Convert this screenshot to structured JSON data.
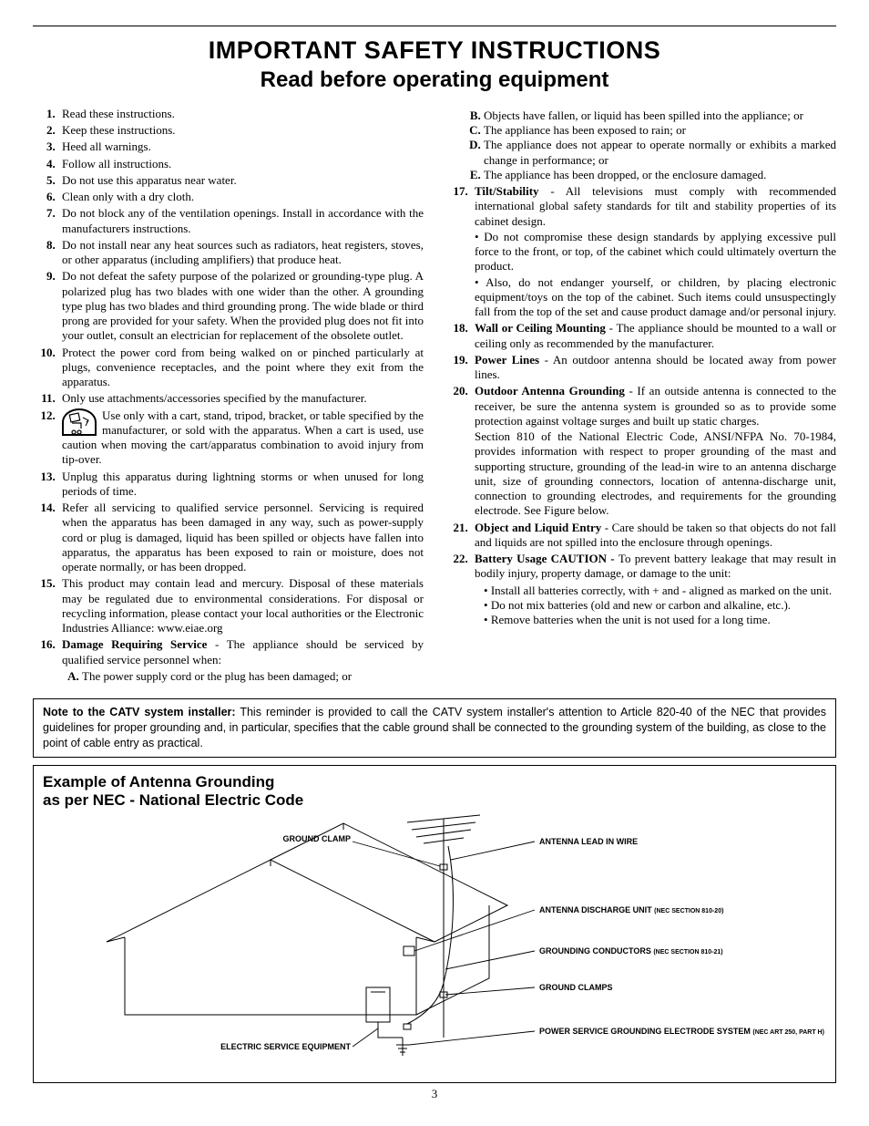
{
  "title": {
    "line1": "IMPORTANT SAFETY INSTRUCTIONS",
    "line2": "Read before operating equipment"
  },
  "left_items": [
    {
      "n": "1",
      "text": "Read these instructions."
    },
    {
      "n": "2",
      "text": "Keep these instructions."
    },
    {
      "n": "3",
      "text": "Heed all warnings."
    },
    {
      "n": "4",
      "text": "Follow all instructions."
    },
    {
      "n": "5",
      "text": "Do not use this apparatus near water."
    },
    {
      "n": "6",
      "text": "Clean only with a dry cloth."
    },
    {
      "n": "7",
      "text": "Do not block any of the ventilation openings. Install in accordance with the manufacturers instructions."
    },
    {
      "n": "8",
      "text": "Do not install near any heat sources such as radiators, heat registers, stoves, or other apparatus (including amplifiers) that produce heat."
    },
    {
      "n": "9",
      "text": "Do not defeat the safety purpose of the polarized or grounding-type plug. A polarized plug has two blades with one wider than the other. A grounding type plug has two blades and third grounding prong. The wide blade or third prong are provided for your safety. When the provided plug does not fit into your outlet, consult an electrician for replacement of the obsolete outlet."
    },
    {
      "n": "10",
      "text": "Protect the power cord from being walked on or pinched particularly at plugs, convenience receptacles, and the point where they exit from the apparatus."
    },
    {
      "n": "11",
      "text": "Only use attachments/accessories specified by the manufacturer."
    },
    {
      "n": "12",
      "text": "Use only with a cart, stand, tripod, bracket, or table specified by the manufacturer, or sold with the apparatus. When a cart is used, use caution when moving the cart/apparatus combination to avoid injury from tip-over.",
      "icon": true
    },
    {
      "n": "13",
      "text": "Unplug this apparatus during lightning storms or when unused for long periods of time."
    },
    {
      "n": "14",
      "text": "Refer all servicing to qualified service personnel. Servicing is required when the apparatus has been damaged in any way, such as power-supply cord or plug is damaged, liquid has been spilled or objects have fallen into apparatus, the apparatus has been exposed to rain or moisture, does not operate normally, or has been dropped."
    },
    {
      "n": "15",
      "text": "This product may contain lead and mercury. Disposal of these materials may be regulated due to environmental considerations. For disposal or recycling information, please contact your local authorities or the Electronic Industries Alliance: www.eiae.org"
    },
    {
      "n": "16",
      "bold": "Damage Requiring Service",
      "text": " - The appliance should be serviced by qualified service personnel when:",
      "sub": [
        {
          "l": "A",
          "text": "The power supply cord or the plug has been damaged; or"
        }
      ]
    }
  ],
  "right_pre_items": [
    {
      "l": "B",
      "text": "Objects have fallen, or liquid has been spilled into the appliance; or"
    },
    {
      "l": "C",
      "text": "The appliance has been exposed to rain; or"
    },
    {
      "l": "D",
      "text": "The appliance does not appear to operate normally or exhibits a marked change in performance; or"
    },
    {
      "l": "E",
      "text": "The appliance has been dropped, or the enclosure damaged."
    }
  ],
  "right_items": [
    {
      "n": "17",
      "bold": "Tilt/Stability",
      "text": " - All televisions must comply with recommended international global safety standards for tilt and stability properties of its cabinet design.",
      "paras": [
        "• Do not compromise these design standards by applying excessive pull force to the front, or top, of the cabinet which could ultimately overturn the product.",
        "• Also, do not endanger yourself, or children, by placing electronic equipment/toys on the top of the cabinet. Such items could unsuspectingly fall from the top of the set and cause product damage and/or personal injury."
      ]
    },
    {
      "n": "18",
      "bold": "Wall or Ceiling Mounting",
      "text": " - The appliance should be mounted to a wall or ceiling only as recommended by the manufacturer."
    },
    {
      "n": "19",
      "bold": "Power Lines",
      "text": " - An outdoor antenna should be located away from power lines."
    },
    {
      "n": "20",
      "bold": "Outdoor Antenna Grounding",
      "text": " - If an outside antenna is connected to the receiver, be sure the antenna system is grounded so as to provide some protection against voltage surges and built up static charges.",
      "paras": [
        "Section 810 of the National Electric Code, ANSI/NFPA No. 70-1984, provides information with respect to proper grounding of the mast and supporting structure, grounding of the lead-in wire to an antenna discharge unit, size of grounding connectors, location of antenna-discharge unit, connection to grounding electrodes, and requirements for the grounding electrode. See Figure below."
      ]
    },
    {
      "n": "21",
      "bold": "Object and Liquid Entry",
      "text": " - Care should be taken so that objects do not fall and liquids are not spilled into the enclosure through openings."
    },
    {
      "n": "22",
      "bold": "Battery Usage CAUTION - ",
      "text": "To prevent battery leakage that may result in bodily injury, property damage, or damage to the unit:",
      "bullets": [
        "Install all batteries correctly, with + and - aligned as marked on the unit.",
        "Do not mix batteries (old and new or carbon and alkaline, etc.).",
        "Remove batteries when the unit is not used for a long time."
      ]
    }
  ],
  "note_box": {
    "bold": "Note to the CATV system installer:",
    "text": " This reminder is provided to call the CATV system installer's attention to Article 820-40 of the NEC that provides guidelines for proper grounding and, in particular, specifies that the cable ground shall be connected to the grounding system of the building, as close to the point of cable entry as practical."
  },
  "diagram": {
    "title_l1": "Example of Antenna Grounding",
    "title_l2": "as per NEC - National Electric Code",
    "labels": {
      "ground_clamp": "GROUND CLAMP",
      "antenna_lead": "ANTENNA LEAD IN WIRE",
      "discharge": "ANTENNA DISCHARGE UNIT ",
      "discharge_sec": "(NEC SECTION 810-20)",
      "conductors": "GROUNDING CONDUCTORS ",
      "conductors_sec": "(NEC SECTION 810-21)",
      "ground_clamps": "GROUND CLAMPS",
      "electric": "ELECTRIC SERVICE EQUIPMENT",
      "power_service": "POWER SERVICE GROUNDING ELECTRODE SYSTEM ",
      "power_service_sec": "(NEC ART 250, PART H)"
    }
  },
  "page_number": "3",
  "colors": {
    "text": "#000000",
    "bg": "#ffffff",
    "rule": "#000000"
  }
}
